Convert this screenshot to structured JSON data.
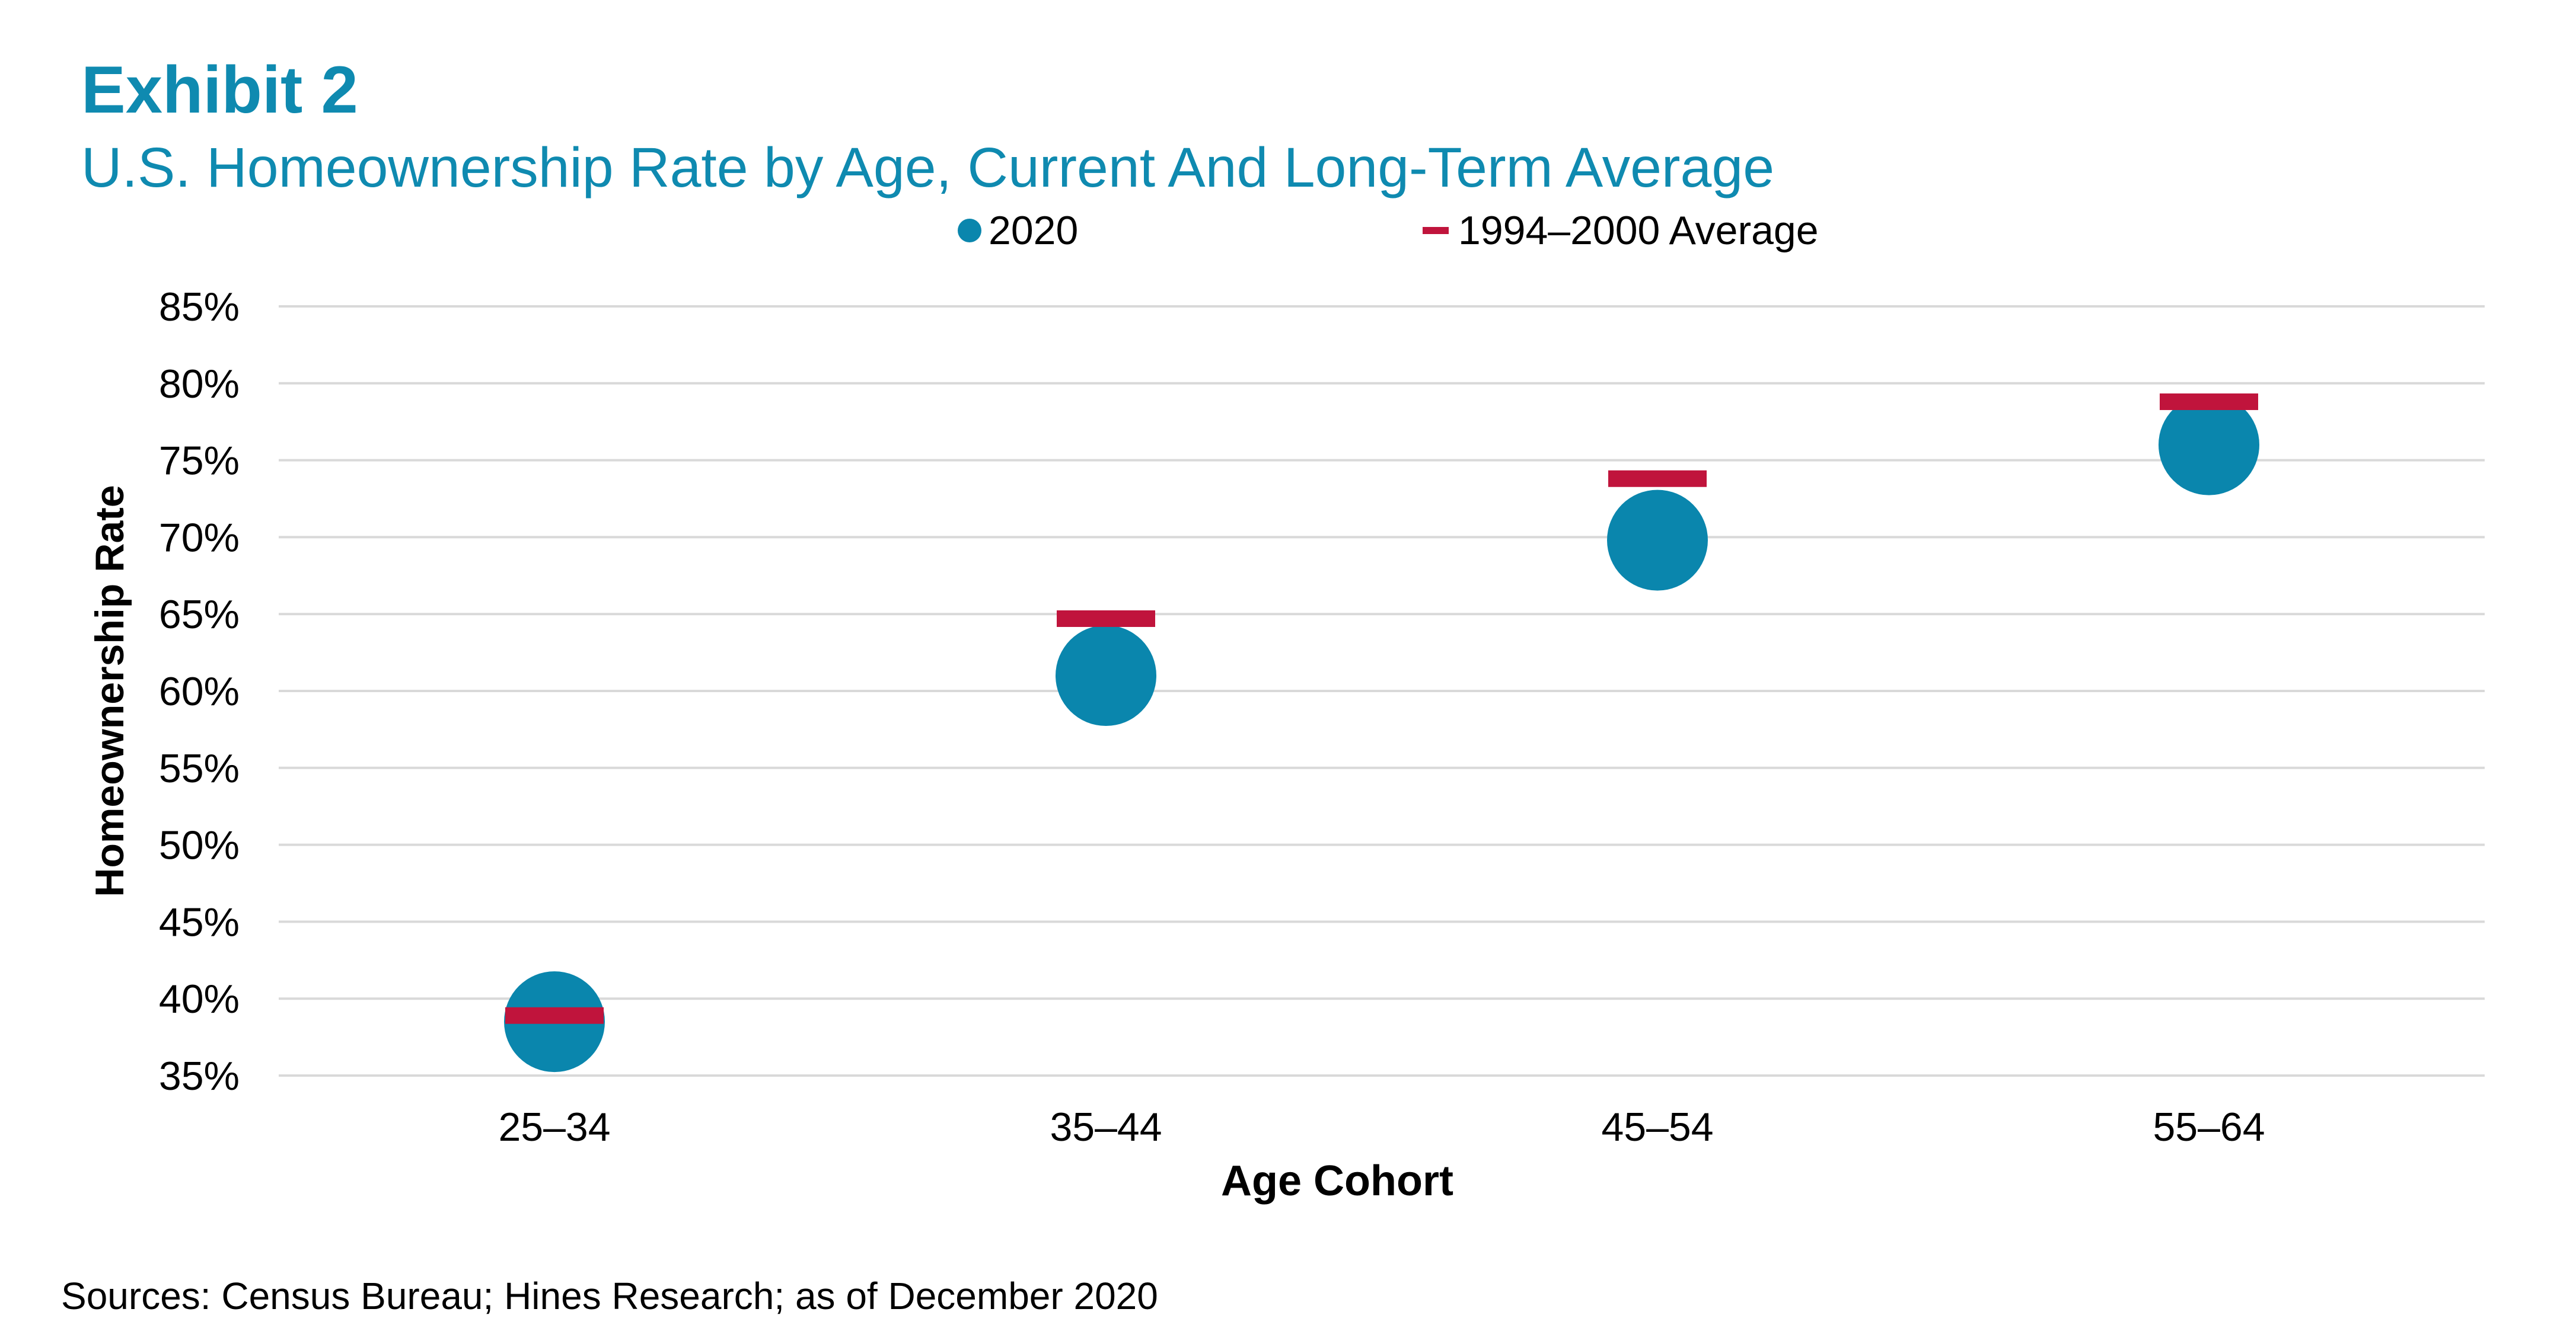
{
  "header": {
    "exhibit": "Exhibit 2",
    "title": "U.S. Homeownership Rate by Age, Current And Long-Term Average"
  },
  "footer": {
    "source": "Sources: Census Bureau; Hines Research; as of December 2020"
  },
  "colors": {
    "title": "#0F8AB0",
    "series_2020": "#0A86AD",
    "series_average": "#C0143C",
    "grid": "#D9D9D9"
  },
  "chart_data": {
    "type": "scatter",
    "title": "U.S. Homeownership Rate by Age, Current And Long-Term Average",
    "xlabel": "Age Cohort",
    "ylabel": "Homeownership Rate",
    "categories": [
      "25–34",
      "35–44",
      "45–54",
      "55–64"
    ],
    "series": [
      {
        "name": "2020",
        "marker": "circle",
        "values": [
          38.5,
          61.0,
          69.8,
          76.0
        ]
      },
      {
        "name": "1994–2000 Average",
        "marker": "dash",
        "values": [
          38.9,
          64.7,
          73.8,
          78.8
        ]
      }
    ],
    "ylim": [
      35,
      85
    ],
    "yticks": [
      35,
      40,
      45,
      50,
      55,
      60,
      65,
      70,
      75,
      80,
      85
    ],
    "ytick_labels": [
      "35%",
      "40%",
      "45%",
      "50%",
      "55%",
      "60%",
      "65%",
      "70%",
      "75%",
      "80%",
      "85%"
    ],
    "grid": true,
    "legend_position": "top-center"
  }
}
